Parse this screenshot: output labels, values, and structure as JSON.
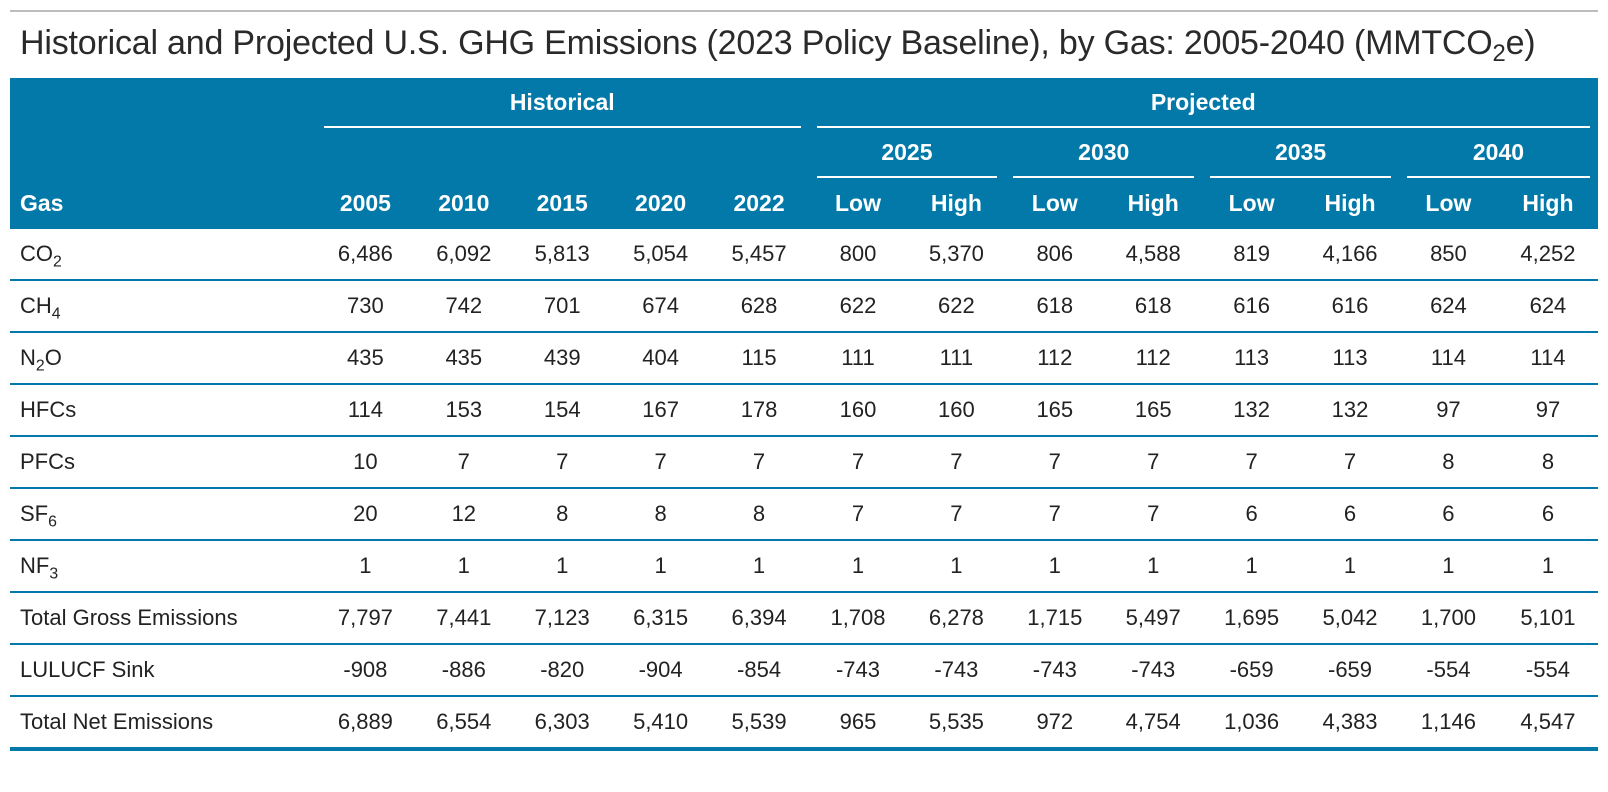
{
  "title": {
    "main": "Historical and Projected U.S. GHG Emissions (2023 Policy Baseline), by Gas: 2005-2040 (MMTCO",
    "sub": "2",
    "suffix": "e)"
  },
  "header": {
    "gas": "Gas",
    "historical": "Historical",
    "projected": "Projected",
    "hist_years": [
      "2005",
      "2010",
      "2015",
      "2020",
      "2022"
    ],
    "proj_years": [
      "2025",
      "2030",
      "2035",
      "2040"
    ],
    "low": "Low",
    "high": "High"
  },
  "rows": [
    {
      "gas": "CO",
      "sub": "2",
      "values": [
        "6,486",
        "6,092",
        "5,813",
        "5,054",
        "5,457",
        "800",
        "5,370",
        "806",
        "4,588",
        "819",
        "4,166",
        "850",
        "4,252"
      ]
    },
    {
      "gas": "CH",
      "sub": "4",
      "values": [
        "730",
        "742",
        "701",
        "674",
        "628",
        "622",
        "622",
        "618",
        "618",
        "616",
        "616",
        "624",
        "624"
      ]
    },
    {
      "gas": "N",
      "sub": "2",
      "suffix": "O",
      "values": [
        "435",
        "435",
        "439",
        "404",
        "115",
        "111",
        "111",
        "112",
        "112",
        "113",
        "113",
        "114",
        "114"
      ]
    },
    {
      "gas": "HFCs",
      "values": [
        "114",
        "153",
        "154",
        "167",
        "178",
        "160",
        "160",
        "165",
        "165",
        "132",
        "132",
        "97",
        "97"
      ]
    },
    {
      "gas": "PFCs",
      "values": [
        "10",
        "7",
        "7",
        "7",
        "7",
        "7",
        "7",
        "7",
        "7",
        "7",
        "7",
        "8",
        "8"
      ]
    },
    {
      "gas": "SF",
      "sub": "6",
      "values": [
        "20",
        "12",
        "8",
        "8",
        "8",
        "7",
        "7",
        "7",
        "7",
        "6",
        "6",
        "6",
        "6"
      ]
    },
    {
      "gas": "NF",
      "sub": "3",
      "values": [
        "1",
        "1",
        "1",
        "1",
        "1",
        "1",
        "1",
        "1",
        "1",
        "1",
        "1",
        "1",
        "1"
      ]
    },
    {
      "gas": "Total Gross Emissions",
      "values": [
        "7,797",
        "7,441",
        "7,123",
        "6,315",
        "6,394",
        "1,708",
        "6,278",
        "1,715",
        "5,497",
        "1,695",
        "5,042",
        "1,700",
        "5,101"
      ]
    },
    {
      "gas": "LULUCF Sink",
      "values": [
        "-908",
        "-886",
        "-820",
        "-904",
        "-854",
        "-743",
        "-743",
        "-743",
        "-743",
        "-659",
        "-659",
        "-554",
        "-554"
      ]
    },
    {
      "gas": "Total Net Emissions",
      "values": [
        "6,889",
        "6,554",
        "6,303",
        "5,410",
        "5,539",
        "965",
        "5,535",
        "972",
        "4,754",
        "1,036",
        "4,383",
        "1,146",
        "4,547"
      ]
    }
  ]
}
